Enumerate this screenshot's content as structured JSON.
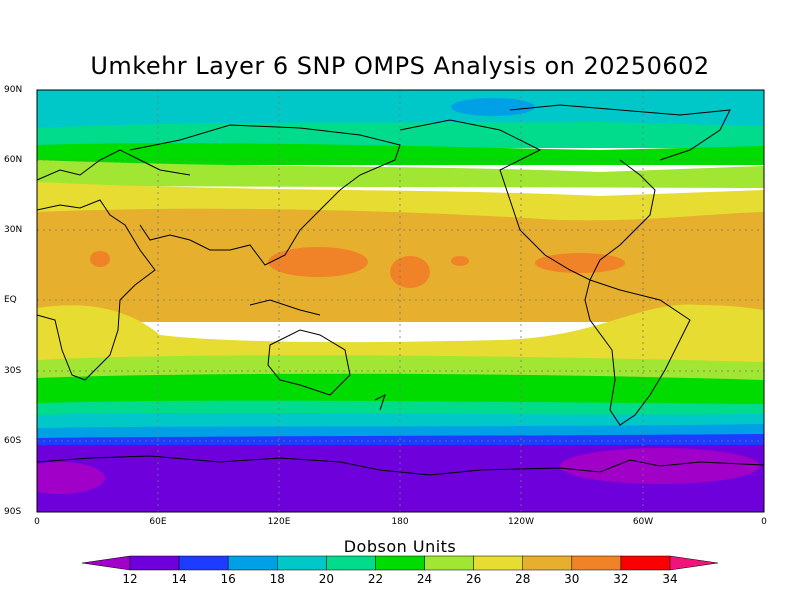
{
  "title": "Umkehr Layer 6 SNP OMPS Analysis on 20250602",
  "map": {
    "lat_labels": [
      "90N",
      "60N",
      "30N",
      "EQ",
      "30S",
      "60S",
      "90S"
    ],
    "lon_labels": [
      "0",
      "60E",
      "120E",
      "180",
      "120W",
      "60W",
      "0"
    ]
  },
  "legend": {
    "title": "Dobson Units",
    "levels": [
      "12",
      "14",
      "16",
      "18",
      "20",
      "22",
      "24",
      "26",
      "28",
      "30",
      "32",
      "34"
    ],
    "colors": [
      "#a000c8",
      "#6e00dc",
      "#1e3cff",
      "#00a0e6",
      "#00c8c8",
      "#00dc8c",
      "#00dc00",
      "#a0e632",
      "#e6dc32",
      "#e6af2d",
      "#f08228",
      "#fa0000",
      "#f0147a"
    ]
  }
}
